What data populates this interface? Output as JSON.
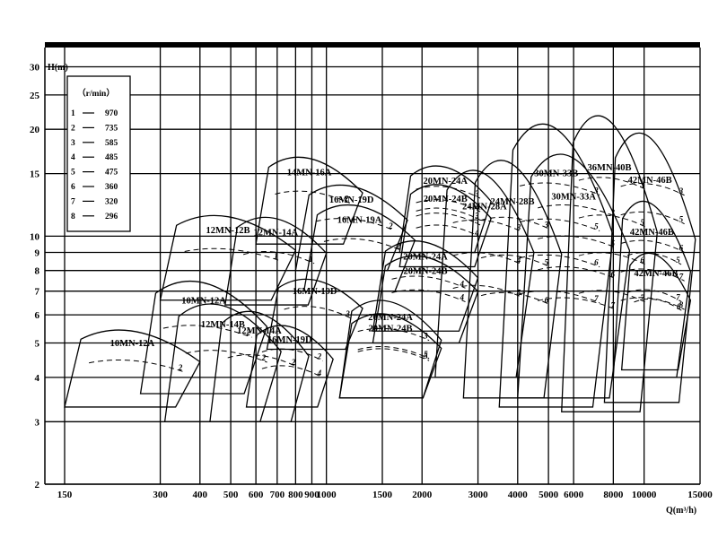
{
  "chart_data": {
    "type": "line",
    "subtype": "pump-performance-selection",
    "xlabel": "Q(m³/h)",
    "ylabel": "H(m)",
    "xscale": "log",
    "yscale": "log",
    "xlim": [
      130,
      15000
    ],
    "ylim": [
      2,
      34
    ],
    "x_ticks": [
      150,
      300,
      400,
      500,
      600,
      700,
      800,
      900,
      1000,
      1500,
      2000,
      3000,
      4000,
      5000,
      6000,
      8000,
      10000,
      15000
    ],
    "y_ticks": [
      2,
      3,
      4,
      5,
      6,
      7,
      8,
      9,
      10,
      15,
      20,
      25,
      30
    ],
    "grid": true,
    "legend": {
      "header": "（r/min）",
      "placement": "top-left",
      "items": [
        {
          "num": "1",
          "speed": "970"
        },
        {
          "num": "2",
          "speed": "735"
        },
        {
          "num": "3",
          "speed": "585"
        },
        {
          "num": "4",
          "speed": "485"
        },
        {
          "num": "5",
          "speed": "475"
        },
        {
          "num": "6",
          "speed": "360"
        },
        {
          "num": "7",
          "speed": "320"
        },
        {
          "num": "8",
          "speed": "296"
        }
      ]
    },
    "zones": [
      {
        "label": "10MN-12A",
        "qmin": 150,
        "qmax": 400,
        "h_top": 5.8,
        "h_bottom": 3.3,
        "curves": [
          "2"
        ]
      },
      {
        "label": "10MN-12A",
        "qmin": 260,
        "qmax": 650,
        "h_top": 8.3,
        "h_bottom": 3.6,
        "curves": [
          "2"
        ]
      },
      {
        "label": "12MN-14B",
        "qmin": 310,
        "qmax": 720,
        "h_top": 7.2,
        "h_bottom": 3.0,
        "curves": [
          "2"
        ]
      },
      {
        "label": "12MN-14A",
        "qmin": 430,
        "qmax": 880,
        "h_top": 6.8,
        "h_bottom": 3.0,
        "curves": [
          "2"
        ]
      },
      {
        "label": "16MN-19D",
        "qmin": 560,
        "qmax": 1050,
        "h_top": 6.0,
        "h_bottom": 3.3,
        "curves": [
          "2",
          "4"
        ]
      },
      {
        "label": "12MN-12B",
        "qmin": 300,
        "qmax": 800,
        "h_top": 12.3,
        "h_bottom": 6.6,
        "curves": [
          "1"
        ]
      },
      {
        "label": "12MN-14A",
        "qmin": 480,
        "qmax": 1000,
        "h_top": 12.2,
        "h_bottom": 6.4,
        "curves": [
          "1"
        ]
      },
      {
        "label": "16MN-19D",
        "qmin": 650,
        "qmax": 1300,
        "h_top": 8.0,
        "h_bottom": 4.8,
        "curves": [
          "3"
        ]
      },
      {
        "label": "14MN-16A",
        "qmin": 600,
        "qmax": 1300,
        "h_top": 18.0,
        "h_bottom": 9.5,
        "curves": [
          "2"
        ]
      },
      {
        "label": "16MN-19D",
        "qmin": 800,
        "qmax": 1800,
        "h_top": 15.0,
        "h_bottom": 8.0,
        "curves": [
          "2"
        ]
      },
      {
        "label": "16MN-19A",
        "qmin": 850,
        "qmax": 1900,
        "h_top": 13.2,
        "h_bottom": 7.0,
        "curves": [
          "2"
        ]
      },
      {
        "label": "20MN-24A",
        "qmin": 1100,
        "qmax": 2300,
        "h_top": 7.2,
        "h_bottom": 3.5,
        "curves": [
          "3",
          "5"
        ]
      },
      {
        "label": "20MN-24B",
        "qmin": 1100,
        "qmax": 2300,
        "h_top": 6.5,
        "h_bottom": 3.5,
        "curves": [
          "5"
        ]
      },
      {
        "label": "20MN-24A",
        "qmin": 1400,
        "qmax": 3000,
        "h_top": 10.5,
        "h_bottom": 5.4,
        "curves": [
          "4"
        ]
      },
      {
        "label": "20MN-24B",
        "qmin": 1400,
        "qmax": 3000,
        "h_top": 9.5,
        "h_bottom": 5.0,
        "curves": [
          "4"
        ]
      },
      {
        "label": "20MN-24A",
        "qmin": 1700,
        "qmax": 3300,
        "h_top": 17.0,
        "h_bottom": 9.0,
        "curves": [
          "3",
          "4",
          "5"
        ]
      },
      {
        "label": "20MN-24B",
        "qmin": 1700,
        "qmax": 3300,
        "h_top": 15.0,
        "h_bottom": 8.2,
        "curves": [
          "3",
          "4"
        ]
      },
      {
        "label": "24MN-28A",
        "qmin": 2200,
        "qmax": 4500,
        "h_top": 19.0,
        "h_bottom": 4.0,
        "curves": [
          "3",
          "4",
          "5"
        ]
      },
      {
        "label": "24MN-28B",
        "qmin": 2700,
        "qmax": 5500,
        "h_top": 21.0,
        "h_bottom": 3.5,
        "curves": [
          "3",
          "5",
          "6"
        ]
      },
      {
        "label": "30MN-33B",
        "qmin": 3500,
        "qmax": 8000,
        "h_top": 28.0,
        "h_bottom": 3.3,
        "curves": [
          "3",
          "5",
          "6",
          "7"
        ]
      },
      {
        "label": "30MN-33A",
        "qmin": 4000,
        "qmax": 9000,
        "h_top": 22.0,
        "h_bottom": 3.5,
        "curves": [
          "3",
          "5",
          "6",
          "7"
        ]
      },
      {
        "label": "36MN-40B",
        "qmin": 5500,
        "qmax": 11000,
        "h_top": 30.0,
        "h_bottom": 3.2,
        "curves": [
          "3",
          "5",
          "6",
          "7"
        ]
      },
      {
        "label": "42MN-46B",
        "qmin": 7500,
        "qmax": 14500,
        "h_top": 26.0,
        "h_bottom": 3.4,
        "curves": [
          "3",
          "5",
          "6",
          "7",
          "8"
        ]
      },
      {
        "label": "42MN-46B",
        "qmin": 8000,
        "qmax": 14000,
        "h_top": 15.0,
        "h_bottom": 4.0,
        "curves": [
          "5",
          "7"
        ]
      },
      {
        "label": "42MN-46B",
        "qmin": 8500,
        "qmax": 14000,
        "h_top": 10.0,
        "h_bottom": 4.2,
        "curves": [
          "8"
        ]
      }
    ]
  }
}
